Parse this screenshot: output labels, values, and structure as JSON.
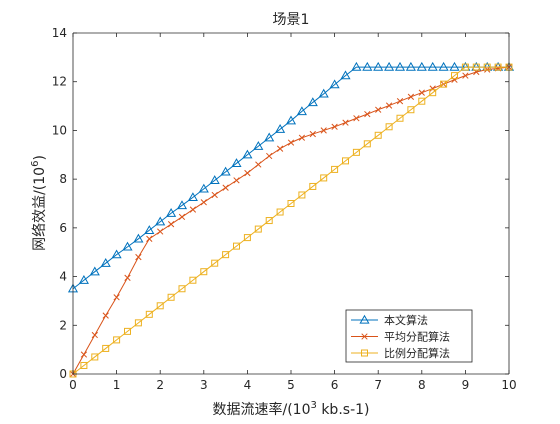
{
  "chart_data": {
    "type": "line",
    "title": "场景1",
    "xlabel_prefix": "数据流速率/(10",
    "xlabel_exp": "3",
    "xlabel_suffix": " kb.s-1)",
    "ylabel_prefix": "网络效益/(10",
    "ylabel_exp": "6",
    "ylabel_suffix": ")",
    "xlim": [
      0,
      10
    ],
    "ylim": [
      0,
      14
    ],
    "xticks": [
      0,
      1,
      2,
      3,
      4,
      5,
      6,
      7,
      8,
      9,
      10
    ],
    "yticks": [
      0,
      2,
      4,
      6,
      8,
      10,
      12,
      14
    ],
    "x_tick_labels": [
      "0",
      "1",
      "2",
      "3",
      "4",
      "5",
      "6",
      "7",
      "8",
      "9",
      "10"
    ],
    "y_tick_labels": [
      "0",
      "2",
      "4",
      "6",
      "8",
      "10",
      "12",
      "14"
    ],
    "grid": false,
    "legend_position": "bottom-right",
    "x_start": 0,
    "x_step": 0.25,
    "series": [
      {
        "name": "本文算法",
        "color": "#0072BD",
        "marker": "triangle",
        "values": [
          3.5,
          3.85,
          4.2,
          4.55,
          4.9,
          5.22,
          5.55,
          5.9,
          6.25,
          6.6,
          6.92,
          7.25,
          7.6,
          7.95,
          8.3,
          8.65,
          9.0,
          9.35,
          9.7,
          10.05,
          10.4,
          10.78,
          11.15,
          11.5,
          11.88,
          12.25,
          12.6,
          12.6,
          12.6,
          12.6,
          12.6,
          12.6,
          12.6,
          12.6,
          12.6,
          12.6,
          12.6,
          12.6,
          12.6,
          12.6,
          12.6
        ]
      },
      {
        "name": "平均分配算法",
        "color": "#D95319",
        "marker": "x",
        "values": [
          0,
          0.8,
          1.6,
          2.4,
          3.15,
          3.95,
          4.8,
          5.55,
          5.85,
          6.15,
          6.45,
          6.75,
          7.05,
          7.35,
          7.65,
          7.95,
          8.25,
          8.6,
          8.95,
          9.25,
          9.5,
          9.7,
          9.85,
          10.0,
          10.15,
          10.32,
          10.5,
          10.67,
          10.85,
          11.02,
          11.2,
          11.38,
          11.55,
          11.72,
          11.9,
          12.08,
          12.25,
          12.4,
          12.5,
          12.55,
          12.6
        ]
      },
      {
        "name": "比例分配算法",
        "color": "#EDB120",
        "marker": "square",
        "values": [
          0,
          0.35,
          0.7,
          1.05,
          1.4,
          1.75,
          2.1,
          2.45,
          2.8,
          3.15,
          3.5,
          3.85,
          4.2,
          4.55,
          4.9,
          5.25,
          5.6,
          5.95,
          6.3,
          6.65,
          7.0,
          7.35,
          7.7,
          8.05,
          8.4,
          8.75,
          9.1,
          9.45,
          9.8,
          10.15,
          10.5,
          10.85,
          11.2,
          11.55,
          11.9,
          12.25,
          12.6,
          12.6,
          12.6,
          12.6,
          12.6
        ]
      }
    ]
  }
}
